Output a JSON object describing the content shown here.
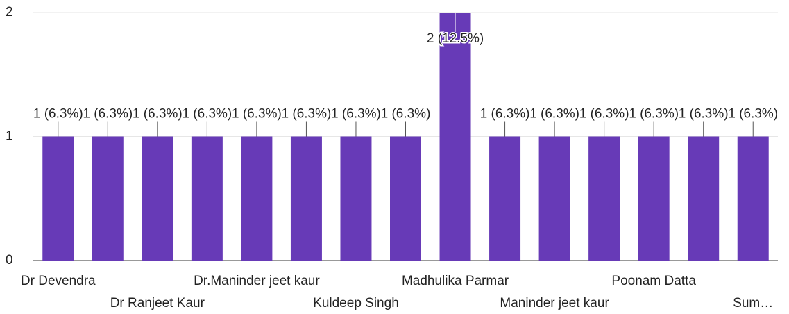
{
  "chart_data": {
    "type": "bar",
    "categories": [
      "Dr Devendra",
      null,
      "Dr Ranjeet Kaur",
      null,
      "Dr.Maninder jeet kaur",
      null,
      "Kuldeep Singh",
      null,
      "Madhulika Parmar",
      null,
      "Maninder jeet kaur",
      null,
      "Poonam Datta",
      null,
      "Sum…"
    ],
    "values": [
      1,
      1,
      1,
      1,
      1,
      1,
      1,
      1,
      2,
      1,
      1,
      1,
      1,
      1,
      1
    ],
    "value_labels": [
      "1 (6.3%)",
      "1 (6.3%)",
      "1 (6.3%)",
      "1 (6.3%)",
      "1 (6.3%)",
      "1 (6.3%)",
      "1 (6.3%)",
      "1 (6.3%)",
      "2 (12.5%)",
      "1 (6.3%)",
      "1 (6.3%)",
      "1 (6.3%)",
      "1 (6.3%)",
      "1 (6.3%)",
      "1 (6.3%)"
    ],
    "color": "#673ab7",
    "ylim": [
      0,
      2
    ],
    "yticks": [
      0,
      1,
      2
    ],
    "grid": true
  }
}
